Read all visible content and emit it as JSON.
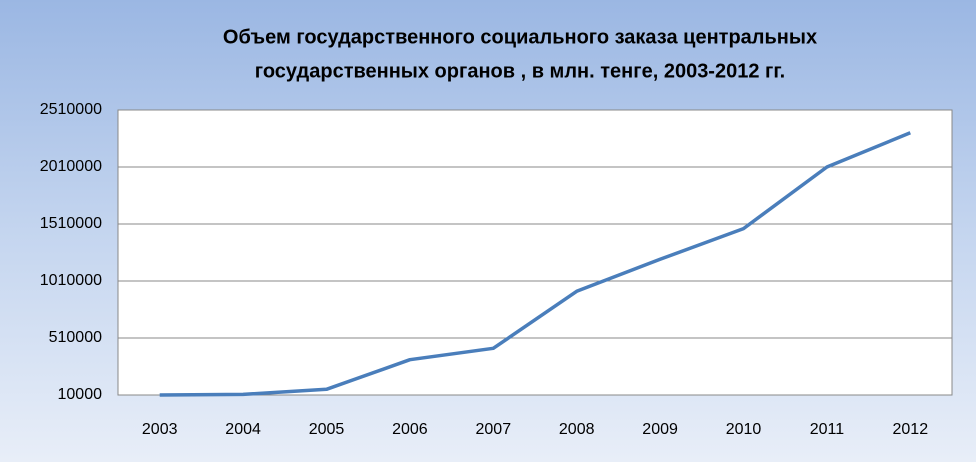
{
  "chart_data": {
    "type": "line",
    "title": [
      "Объем государственного социального заказа центральных",
      "государственных органов , в млн. тенге, 2003-2012 гг."
    ],
    "categories": [
      "2003",
      "2004",
      "2005",
      "2006",
      "2007",
      "2008",
      "2009",
      "2010",
      "2011",
      "2012"
    ],
    "values": [
      10000,
      15000,
      60000,
      320000,
      420000,
      920000,
      1200000,
      1470000,
      2010000,
      2310000
    ],
    "color": "#4a7ebb",
    "ylim": [
      10000,
      2510000
    ],
    "yticks": [
      10000,
      510000,
      1010000,
      1510000,
      2010000,
      2510000
    ],
    "grid": true
  }
}
